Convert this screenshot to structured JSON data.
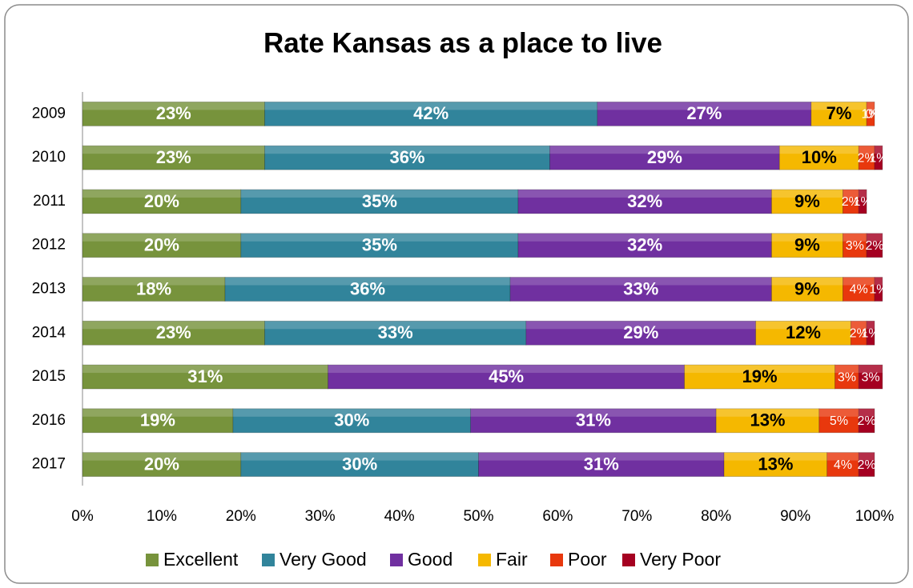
{
  "chart_data": {
    "type": "stacked-bar-horizontal",
    "title": "Rate Kansas as a place to live",
    "categories": [
      "2009",
      "2010",
      "2011",
      "2012",
      "2013",
      "2014",
      "2015",
      "2016",
      "2017"
    ],
    "series": [
      {
        "name": "Excellent",
        "color": "#77933c",
        "values": [
          23,
          23,
          20,
          20,
          18,
          23,
          31,
          19,
          20
        ],
        "value_labels": [
          "23%",
          "23%",
          "20%",
          "20%",
          "18%",
          "23%",
          "31%",
          "19%",
          "20%"
        ]
      },
      {
        "name": "Very Good",
        "color": "#31849b",
        "values": [
          42,
          36,
          35,
          35,
          36,
          33,
          null,
          30,
          30
        ],
        "value_labels": [
          "42%",
          "36%",
          "35%",
          "35%",
          "36%",
          "33%",
          null,
          "30%",
          "30%"
        ]
      },
      {
        "name": "Good",
        "color": "#7030a0",
        "values": [
          27,
          29,
          32,
          32,
          33,
          29,
          45,
          31,
          31
        ],
        "value_labels": [
          "27%",
          "29%",
          "32%",
          "32%",
          "33%",
          "29%",
          "45%",
          "31%",
          "31%"
        ]
      },
      {
        "name": "Fair",
        "color": "#f5b800",
        "values": [
          7,
          10,
          9,
          9,
          9,
          12,
          19,
          13,
          13
        ],
        "value_labels": [
          "7%",
          "10%",
          "9%",
          "9%",
          "9%",
          "12%",
          "19%",
          "13%",
          "13%"
        ]
      },
      {
        "name": "Poor",
        "color": "#e8380d",
        "values": [
          1,
          2,
          2,
          3,
          4,
          2,
          3,
          5,
          4
        ],
        "value_labels": [
          "1%",
          "2%",
          "2%",
          "3%",
          "4%",
          "2%",
          "3%",
          "5%",
          "4%"
        ]
      },
      {
        "name": "Very Poor",
        "color": "#a50021",
        "values": [
          0,
          1,
          1,
          2,
          1,
          1,
          3,
          2,
          2
        ],
        "value_labels": [
          "0%",
          "1%",
          "1%",
          "2%",
          "1%",
          "1%",
          "3%",
          "2%",
          "2%"
        ]
      }
    ],
    "xlim": [
      0,
      100
    ],
    "xticks": [
      {
        "value": 0,
        "label": "0%"
      },
      {
        "value": 10,
        "label": "10%"
      },
      {
        "value": 20,
        "label": "20%"
      },
      {
        "value": 30,
        "label": "30%"
      },
      {
        "value": 40,
        "label": "40%"
      },
      {
        "value": 50,
        "label": "50%"
      },
      {
        "value": 60,
        "label": "60%"
      },
      {
        "value": 70,
        "label": "70%"
      },
      {
        "value": 80,
        "label": "80%"
      },
      {
        "value": 90,
        "label": "90%"
      },
      {
        "value": 100,
        "label": "100%"
      }
    ],
    "legend": "bottom"
  }
}
